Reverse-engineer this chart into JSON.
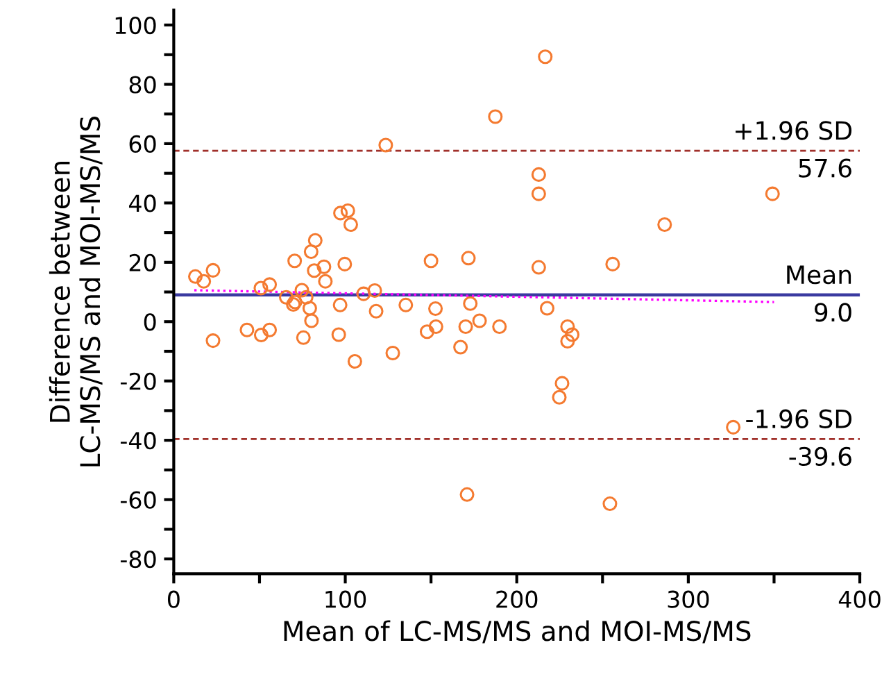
{
  "chart_data": {
    "type": "scatter",
    "xlabel": "Mean of LC-MS/MS and MOI-MS/MS",
    "ylabel": "Difference between\nLC-MS/MS and MOI-MS/MS",
    "xlim": [
      0,
      400
    ],
    "ylim": [
      -85,
      105
    ],
    "xticks": [
      0,
      {
        "value": 50,
        "label": null
      },
      100,
      {
        "value": 150,
        "label": null
      },
      200,
      {
        "value": 250,
        "label": null
      },
      300,
      {
        "value": 350,
        "label": null
      },
      400
    ],
    "yticks": [
      -80,
      {
        "value": -70,
        "label": null
      },
      -60,
      {
        "value": -50,
        "label": null
      },
      -40,
      {
        "value": -30,
        "label": null
      },
      -20,
      {
        "value": -10,
        "label": null
      },
      0,
      {
        "value": 10,
        "label": null
      },
      20,
      {
        "value": 30,
        "label": null
      },
      40,
      {
        "value": 50,
        "label": null
      },
      60,
      {
        "value": 70,
        "label": null
      },
      80,
      {
        "value": 90,
        "label": null
      },
      100
    ],
    "grid": false,
    "legend": false,
    "marker": "circle",
    "series": [
      {
        "color": "#f47a30",
        "x": [
          12.6,
          17.5,
          22.9,
          22.9,
          42.7,
          50.8,
          55.9,
          51.0,
          55.9,
          70.5,
          65.6,
          69.7,
          70.7,
          74.7,
          77.2,
          79.3,
          80.3,
          75.6,
          80.1,
          82.5,
          81.9,
          87.6,
          88.4,
          97.2,
          101.5,
          103.2,
          99.7,
          97.0,
          96.2,
          105.6,
          110.7,
          117.2,
          118.0,
          123.6,
          127.7,
          135.3,
          147.7,
          150.0,
          152.6,
          152.9,
          167.2,
          170.2,
          171.8,
          172.9,
          178.3,
          189.9,
          187.5,
          171.0,
          216.6,
          212.8,
          212.8,
          212.8,
          217.7,
          229.6,
          229.6,
          232.3,
          226.4,
          224.8,
          255.9,
          286.2,
          349.1,
          326.2,
          254.3
        ],
        "values": [
          15.2,
          13.6,
          17.3,
          -6.4,
          -2.8,
          11.3,
          12.5,
          -4.5,
          -2.8,
          20.5,
          8.2,
          5.8,
          6.6,
          10.6,
          8.2,
          4.5,
          0.3,
          -5.4,
          23.6,
          27.4,
          17.2,
          18.5,
          13.6,
          36.6,
          37.4,
          32.7,
          19.4,
          5.6,
          -4.4,
          -13.4,
          9.4,
          10.5,
          3.5,
          59.5,
          -10.6,
          5.6,
          -3.4,
          20.5,
          4.4,
          -1.7,
          -8.6,
          -1.7,
          21.4,
          6.1,
          0.3,
          -1.7,
          69.1,
          -58.3,
          89.3,
          49.6,
          43.1,
          18.3,
          4.5,
          -1.7,
          -6.6,
          -4.4,
          -20.8,
          -25.5,
          19.4,
          32.7,
          43.1,
          -35.6,
          -61.4
        ]
      },
      {
        "type": "line",
        "color": "#ff00ff",
        "line_style": "dotted",
        "marker": "none",
        "x": [
          12,
          350
        ],
        "values": [
          10.6,
          6.6
        ]
      }
    ],
    "ref_lines": [
      {
        "axis": "y",
        "value": 57.6,
        "label": "+1.96 SD",
        "color": "#a0302a",
        "line_style": "dashed"
      },
      {
        "axis": "y",
        "value": 9.0,
        "label": "Mean",
        "color": "#3a3aa0",
        "line_style": "solid"
      },
      {
        "axis": "y",
        "value": -39.6,
        "label": "-1.96 SD",
        "color": "#a0302a",
        "line_style": "dashed"
      }
    ],
    "annotations": [
      {
        "text": "57.6",
        "y": 57.6
      },
      {
        "text": "9.0",
        "y": 9.0
      },
      {
        "text": "-39.6",
        "y": -39.6
      }
    ]
  }
}
